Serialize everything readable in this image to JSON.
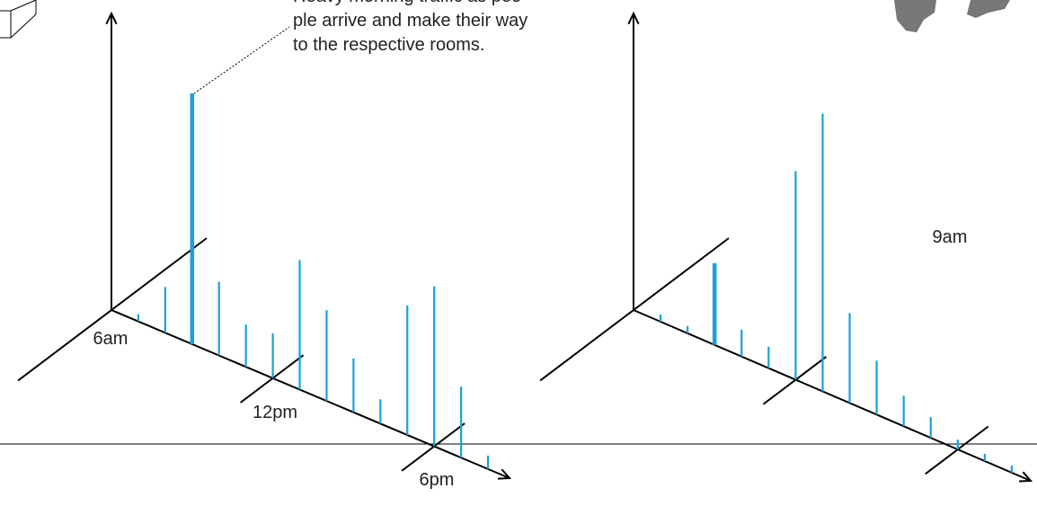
{
  "chart_data": [
    {
      "type": "bar",
      "color": "#1aa0dc",
      "highlight": 2,
      "annotation": [
        "Heavy morning traffic as peo-",
        "ple arrive and make their way",
        "to the respective rooms."
      ],
      "x": [
        1,
        2,
        3,
        4,
        5,
        6,
        7,
        8,
        9,
        10,
        11,
        12,
        13,
        14
      ],
      "values": [
        8,
        51,
        279,
        82,
        47,
        50,
        144,
        101,
        60,
        27,
        144,
        178,
        79,
        15
      ],
      "xlim": [
        0,
        14.8
      ],
      "ylim": [
        0,
        330
      ],
      "xticks": [
        {
          "value": 0,
          "label": "6am"
        },
        {
          "value": 6,
          "label": "12pm"
        },
        {
          "value": 12,
          "label": "6pm"
        }
      ]
    },
    {
      "type": "bar",
      "color": "#1aa0dc",
      "highlight": 2,
      "annotation": [
        "9am"
      ],
      "x": [
        1,
        2,
        3,
        4,
        5,
        6,
        7,
        8,
        9,
        10,
        11,
        12,
        13,
        14
      ],
      "values": [
        8,
        8,
        91,
        30,
        24,
        232,
        309,
        100,
        60,
        34,
        23,
        11,
        8,
        8
      ],
      "xlim": [
        0,
        14.7
      ],
      "ylim": [
        0,
        330
      ],
      "xticks": [
        6,
        12
      ]
    }
  ]
}
